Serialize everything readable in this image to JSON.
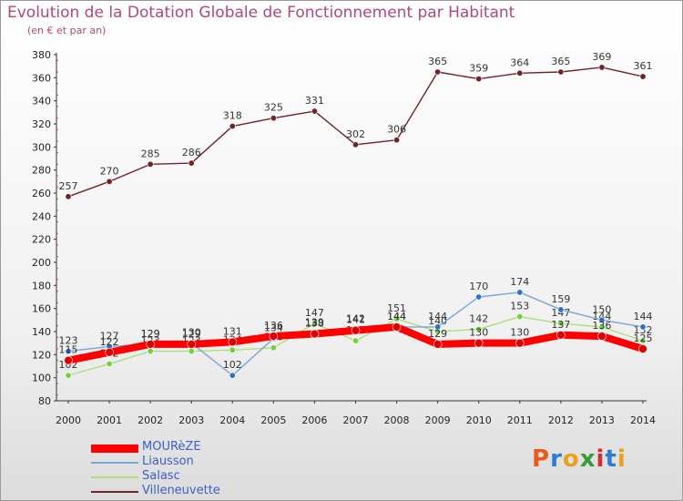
{
  "header": {
    "title": "Evolution de la Dotation Globale de Fonctionnement par Habitant",
    "subtitle": "(en € et par an)"
  },
  "logo": {
    "text": "Proxiti",
    "colors": [
      "#e85a1e",
      "#2e7bd6",
      "#e8a01e",
      "#3a9a3a",
      "#d03030",
      "#2e7bd6",
      "#e8a01e"
    ]
  },
  "chart_data": {
    "type": "line",
    "x": [
      2000,
      2001,
      2002,
      2003,
      2004,
      2005,
      2006,
      2007,
      2008,
      2009,
      2010,
      2011,
      2012,
      2013,
      2014
    ],
    "ylim": [
      80,
      380
    ],
    "yticks": [
      80,
      100,
      120,
      140,
      160,
      180,
      200,
      220,
      240,
      260,
      280,
      300,
      320,
      340,
      360,
      380
    ],
    "series": [
      {
        "name": "Villeneuvette",
        "color": "#6e2428",
        "marker": "#6e2428",
        "width": 1.4,
        "labels": true,
        "values": [
          257,
          270,
          285,
          286,
          318,
          325,
          331,
          302,
          306,
          365,
          359,
          364,
          365,
          369,
          361
        ]
      },
      {
        "name": "Salasc",
        "color": "#a8e07e",
        "marker": "#6fd03a",
        "width": 1.4,
        "labels": true,
        "values": [
          102,
          112,
          123,
          123,
          124,
          126,
          147,
          132,
          151,
          140,
          142,
          153,
          147,
          144,
          132
        ]
      },
      {
        "name": "Liausson",
        "color": "#7aa6d6",
        "marker": "#2e6fc7",
        "width": 1.4,
        "labels": true,
        "values": [
          123,
          127,
          129,
          130,
          102,
          134,
          139,
          142,
          144,
          144,
          170,
          174,
          159,
          150,
          144
        ]
      },
      {
        "name": "MOURèZE",
        "color": "#ff0000",
        "marker": "#e00000",
        "width": 8,
        "labels": true,
        "values": [
          115,
          122,
          129,
          129,
          131,
          136,
          138,
          141,
          144,
          129,
          130,
          130,
          137,
          136,
          125
        ]
      }
    ],
    "legend": [
      "MOURèZE",
      "Liausson",
      "Salasc",
      "Villeneuvette"
    ],
    "legend_position": "bottom-left",
    "grid": false
  }
}
